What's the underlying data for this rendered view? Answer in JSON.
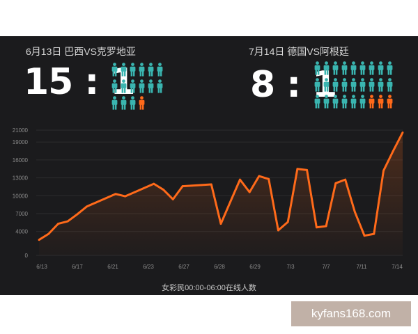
{
  "colors": {
    "background": "#1b1b1d",
    "line": "#ff6a1a",
    "fan_icon": "#3ab5b0",
    "female_icon": "#ff6a1a",
    "axis_text": "#8c8c8c",
    "grid": "#2c2c2e"
  },
  "match1": {
    "date_label": "6月13日 巴西VS克罗地亚",
    "score": "15 : 1",
    "male_count": 15,
    "female_count": 1
  },
  "match2": {
    "date_label": "7月14日 德国VS阿根廷",
    "score": "8 : 1",
    "male_count": 24,
    "female_count": 3
  },
  "chart_data": {
    "type": "area",
    "title": "",
    "xlabel": "女彩民00:00-06:00在线人数",
    "ylabel": "",
    "ylim": [
      0,
      21000
    ],
    "y_ticks": [
      "0",
      "4000",
      "7000",
      "10000",
      "13000",
      "16000",
      "19000",
      "21000"
    ],
    "x_tick_labels": [
      "6/13",
      "6/17",
      "6/21",
      "6/23",
      "6/27",
      "6/28",
      "6/29",
      "7/3",
      "7/7",
      "7/11",
      "7/14"
    ],
    "legend": "none",
    "grid": true,
    "series": [
      {
        "values": [
          2600,
          3600,
          5300,
          5700,
          6900,
          8200,
          8900,
          9600,
          10300,
          9900,
          10600,
          11300,
          12000,
          11000,
          9400,
          11600,
          11700,
          11800,
          11900,
          5300,
          9000,
          12700,
          10600,
          13300,
          12800,
          4200,
          5600,
          14500,
          14300,
          4700,
          4900,
          12100,
          12700,
          7300,
          3300,
          3600,
          14200,
          17500,
          20600
        ]
      }
    ]
  },
  "watermark": "kyfans168.com"
}
